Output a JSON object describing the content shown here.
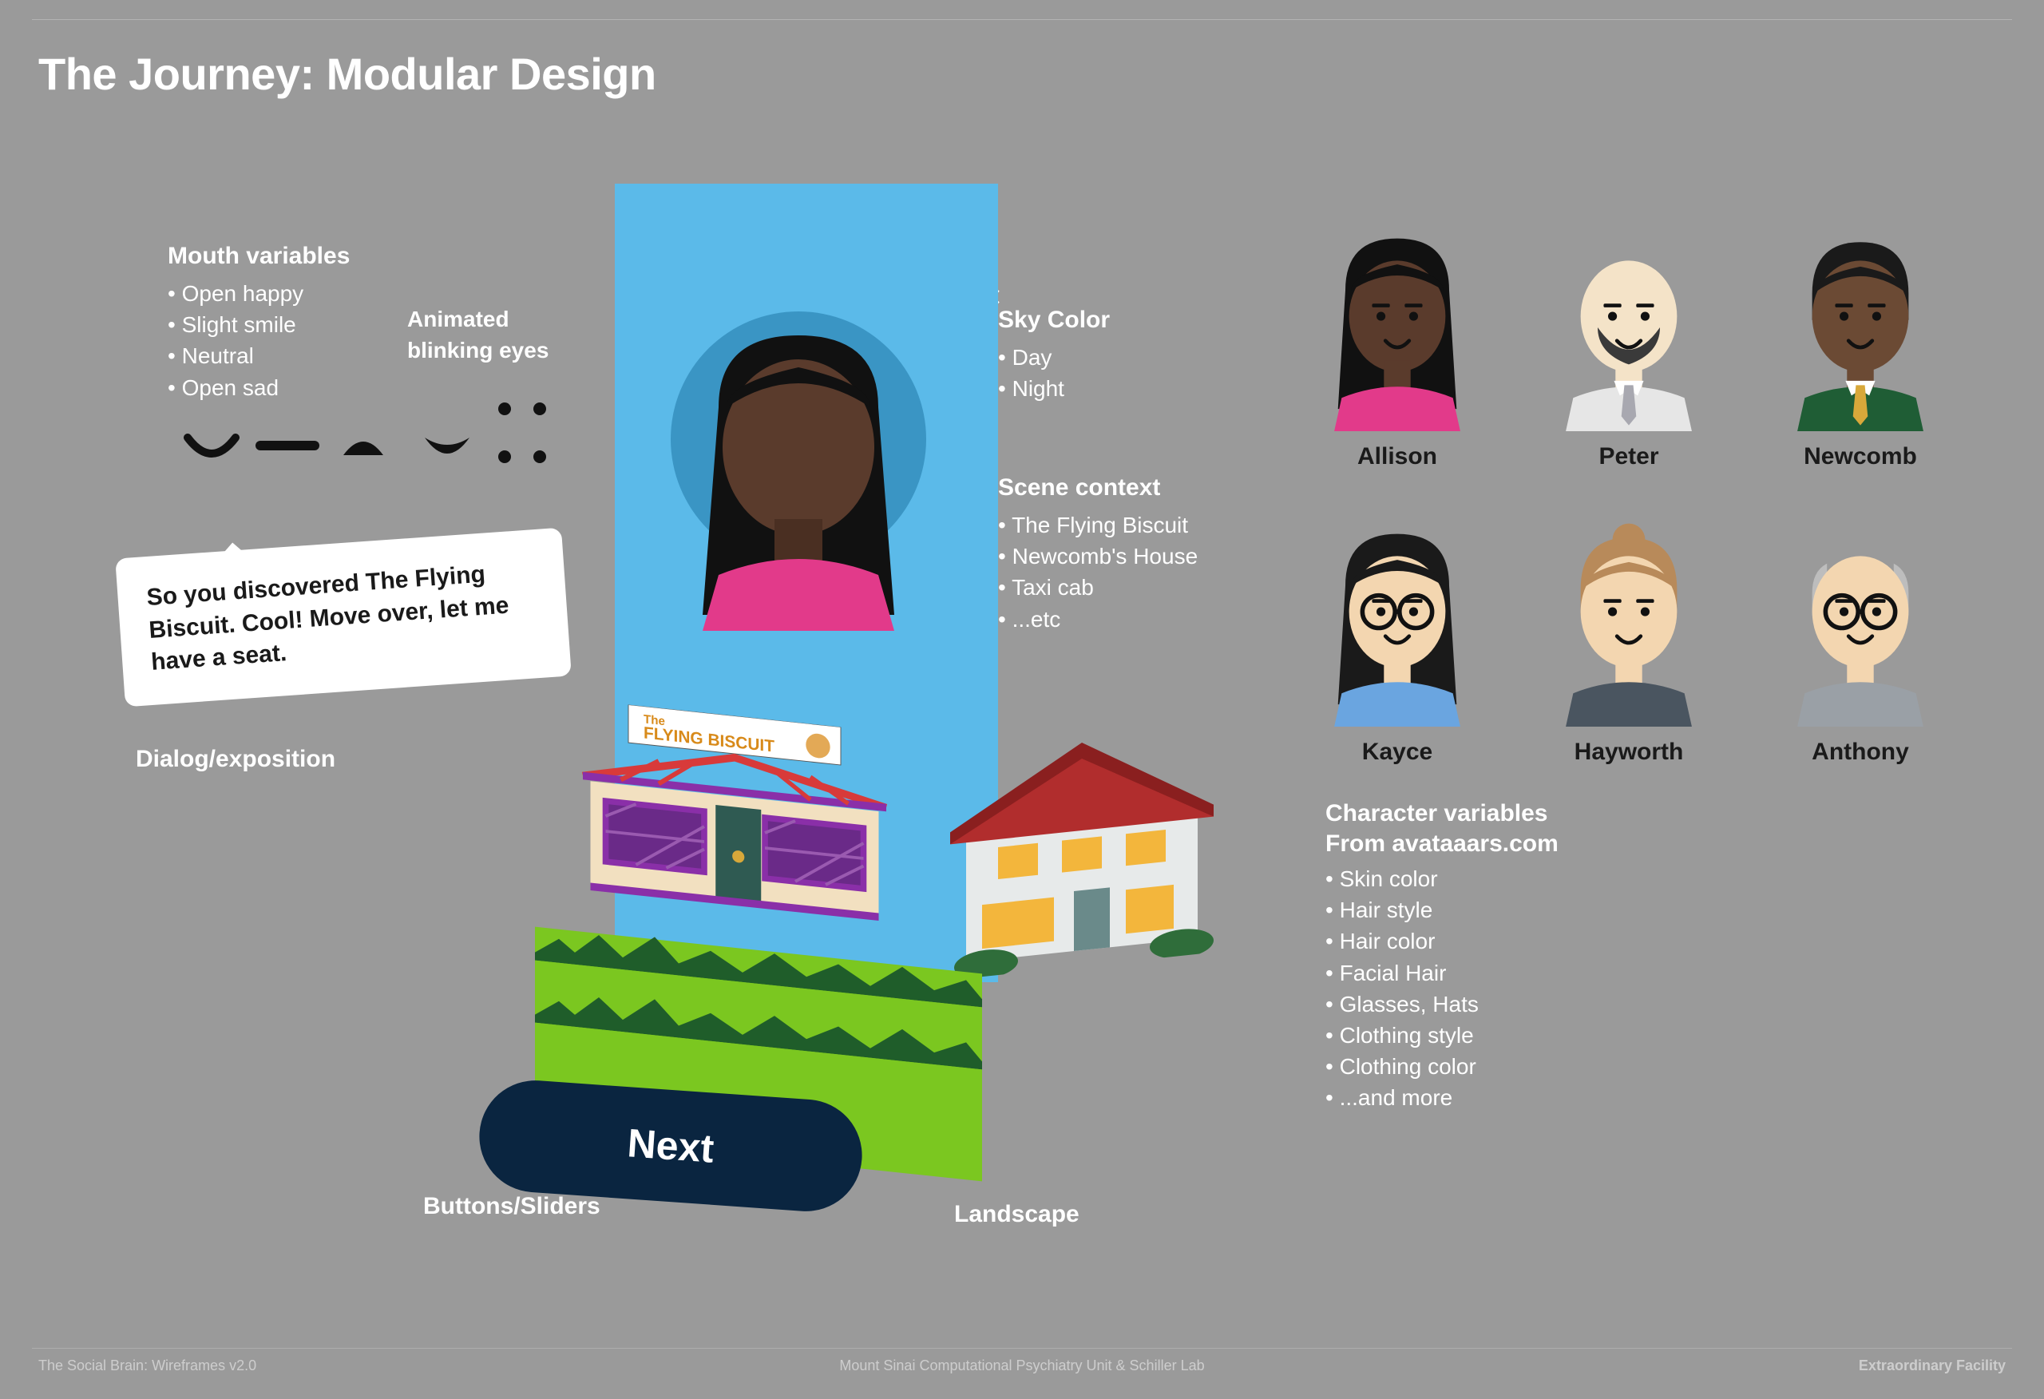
{
  "page": {
    "title": "The Journey: Modular Design",
    "background_color": "#9a9a9a",
    "text_color": "#ffffff"
  },
  "annotations": {
    "mouth_variables": {
      "heading": "Mouth variables",
      "items": [
        "Open happy",
        "Slight smile",
        "Neutral",
        "Open sad"
      ]
    },
    "blinking_eyes_label": "Animated blinking eyes",
    "sky_color": {
      "heading": "Sky Color",
      "items": [
        "Day",
        "Night"
      ]
    },
    "scene_context": {
      "heading": "Scene context",
      "items": [
        "The Flying Biscuit",
        "Newcomb's House",
        "Taxi cab",
        "...etc"
      ]
    },
    "dialog_label": "Dialog/exposition",
    "buttons_label": "Buttons/Sliders",
    "landscape_label": "Landscape",
    "close_x": "×"
  },
  "speech_bubble": {
    "text": "So you discovered The Flying Biscuit. Cool! Move over, let me have a seat.",
    "bg_color": "#ffffff",
    "text_color": "#1a1a1a",
    "rotation_deg": -4
  },
  "stack": {
    "sky_color": "#5bbae9",
    "avatar_circle_color": "#3a95c4",
    "grass_color": "#7bc720",
    "store_sign_prefix": "The",
    "store_sign_main": "FLYING BISCUIT",
    "store_colors": {
      "wall": "#f2e0c0",
      "trim": "#8a2fa8",
      "door": "#2f5a52",
      "roof_truss": "#d83a3a",
      "sign_bg": "#ffffff"
    },
    "house_colors": {
      "wall": "#e7eaea",
      "roof": "#b12d2d",
      "window": "#f3b63c",
      "door": "#6a8a8a"
    },
    "next_button": {
      "label": "Next",
      "bg": "#0a2540",
      "text_color": "#ffffff"
    }
  },
  "avatars": [
    {
      "name": "Allison",
      "skin": "#5a3b2c",
      "hair": "#111111",
      "hair_style": "long",
      "shirt": "#e23a8a",
      "beard": false,
      "glasses": false,
      "bald": false,
      "bun": false
    },
    {
      "name": "Peter",
      "skin": "#f4e3c8",
      "hair": "#3a3a3a",
      "hair_style": "short",
      "shirt": "#e6e6e6",
      "beard": true,
      "glasses": false,
      "bald": true,
      "bun": false,
      "tie": "#a8a8b0"
    },
    {
      "name": "Newcomb",
      "skin": "#6b4a34",
      "hair": "#1a1a1a",
      "hair_style": "short",
      "shirt": "#1f5d35",
      "beard": false,
      "glasses": false,
      "bald": false,
      "bun": false,
      "tie": "#d8a83a"
    },
    {
      "name": "Kayce",
      "skin": "#f3d6b0",
      "hair": "#1a1a1a",
      "hair_style": "long",
      "shirt": "#6aa5e0",
      "beard": false,
      "glasses": true,
      "bald": false,
      "bun": false
    },
    {
      "name": "Hayworth",
      "skin": "#f3d6b0",
      "hair": "#b88a5a",
      "hair_style": "bun",
      "shirt": "#4a5560",
      "beard": false,
      "glasses": false,
      "bald": false,
      "bun": true
    },
    {
      "name": "Anthony",
      "skin": "#f3d6b0",
      "hair": "#bdbdbd",
      "hair_style": "bald-side",
      "shirt": "#9aa0a6",
      "beard": false,
      "glasses": true,
      "bald": true,
      "bun": false
    }
  ],
  "character_variables": {
    "heading_l1": "Character variables",
    "heading_l2": "From avataaars.com",
    "items": [
      "Skin color",
      "Hair style",
      "Hair color",
      "Facial Hair",
      "Glasses, Hats",
      "Clothing style",
      "Clothing color",
      "...and more"
    ]
  },
  "footer": {
    "left": "The Social Brain: Wireframes v2.0",
    "center": "Mount Sinai Computational Psychiatry Unit & Schiller Lab",
    "right": "Extraordinary Facility"
  }
}
